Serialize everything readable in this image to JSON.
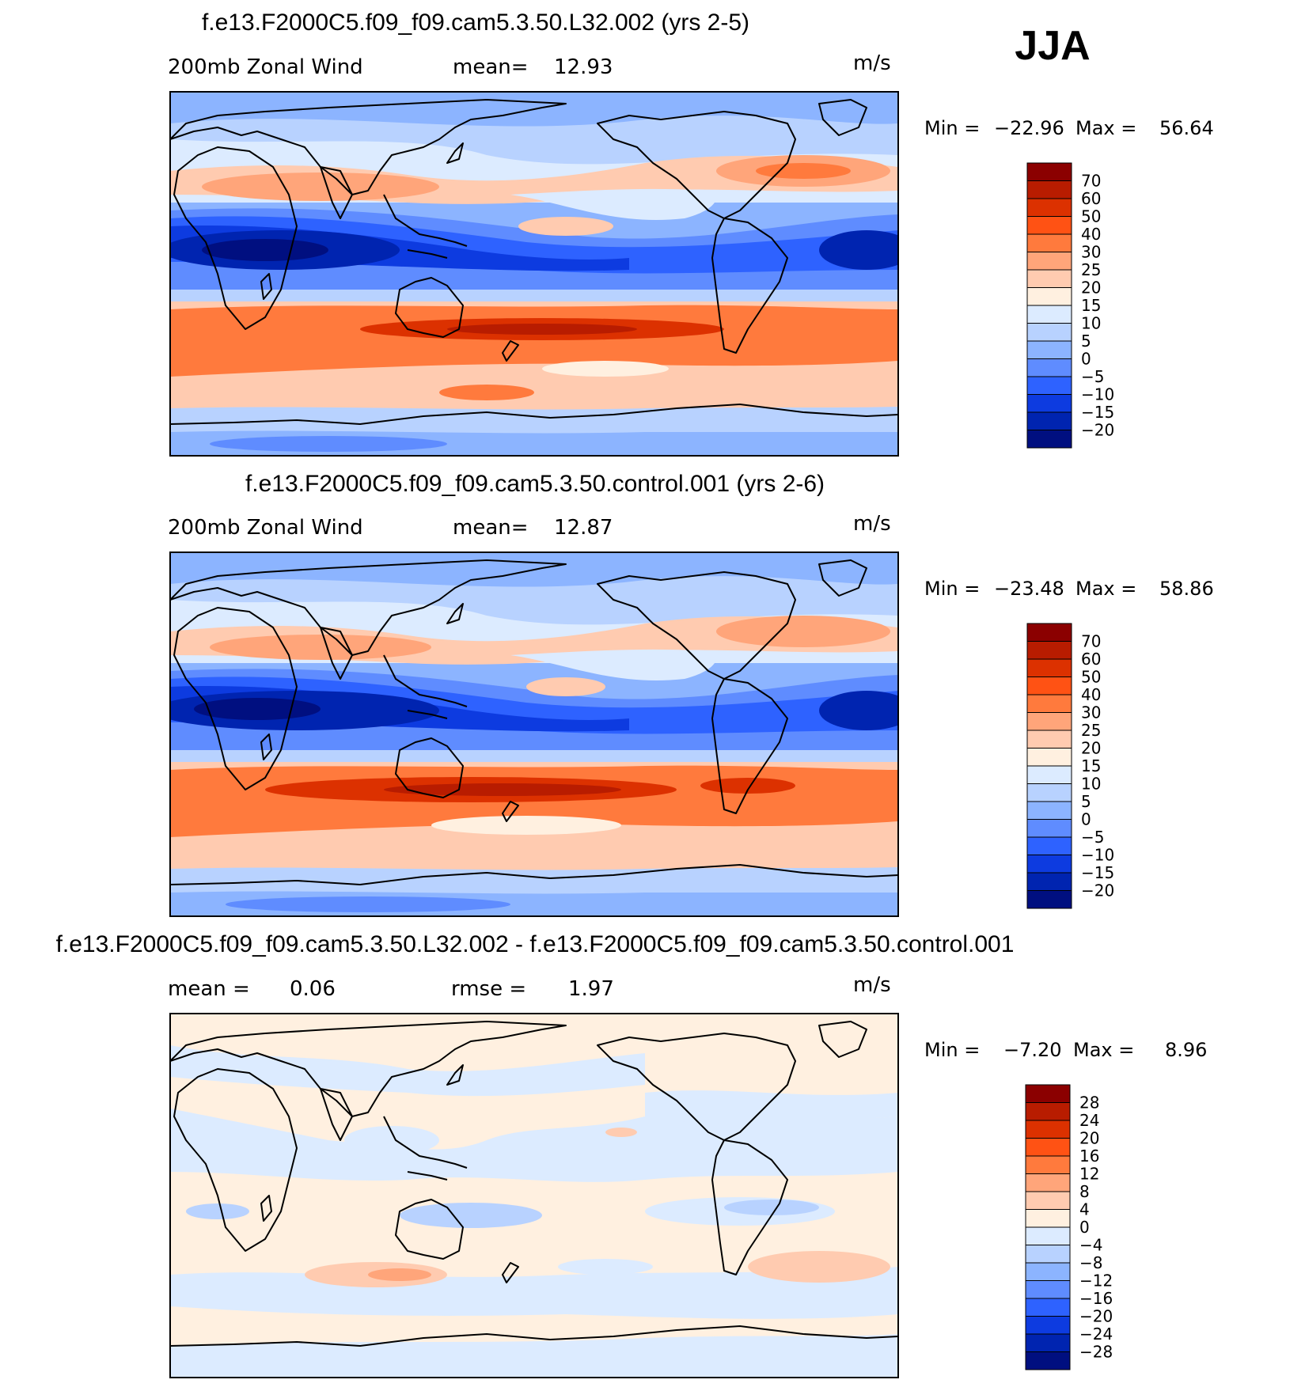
{
  "season": "JJA",
  "panels": [
    {
      "title": "f.e13.F2000C5.f09_f09.cam5.3.50.L32.002 (yrs 2-5)",
      "left_label": "200mb Zonal Wind",
      "mid_label": "mean=",
      "mid_value": "12.93",
      "units": "m/s",
      "min_label": "Min =",
      "min_value": "−22.96",
      "max_label": "Max =",
      "max_value": "56.64",
      "colorbar": {
        "colors": [
          "#8b0000",
          "#b81c00",
          "#dc3100",
          "#ff5214",
          "#ff7a3d",
          "#ffa57a",
          "#ffcbb0",
          "#fff0e0",
          "#dcebff",
          "#b8d2ff",
          "#8cb4ff",
          "#5f8cff",
          "#2e62ff",
          "#0d3be0",
          "#0024b0",
          "#000f80"
        ],
        "labels": [
          "70",
          "60",
          "50",
          "40",
          "30",
          "25",
          "20",
          "15",
          "10",
          "5",
          "0",
          "−5",
          "−10",
          "−15",
          "−20"
        ]
      }
    },
    {
      "title": "f.e13.F2000C5.f09_f09.cam5.3.50.control.001 (yrs 2-6)",
      "left_label": "200mb Zonal Wind",
      "mid_label": "mean=",
      "mid_value": "12.87",
      "units": "m/s",
      "min_label": "Min =",
      "min_value": "−23.48",
      "max_label": "Max =",
      "max_value": "58.86",
      "colorbar": {
        "colors": [
          "#8b0000",
          "#b81c00",
          "#dc3100",
          "#ff5214",
          "#ff7a3d",
          "#ffa57a",
          "#ffcbb0",
          "#fff0e0",
          "#dcebff",
          "#b8d2ff",
          "#8cb4ff",
          "#5f8cff",
          "#2e62ff",
          "#0d3be0",
          "#0024b0",
          "#000f80"
        ],
        "labels": [
          "70",
          "60",
          "50",
          "40",
          "30",
          "25",
          "20",
          "15",
          "10",
          "5",
          "0",
          "−5",
          "−10",
          "−15",
          "−20"
        ]
      }
    },
    {
      "title": "f.e13.F2000C5.f09_f09.cam5.3.50.L32.002 - f.e13.F2000C5.f09_f09.cam5.3.50.control.001",
      "left_label": "mean =",
      "left_value": "0.06",
      "mid_label": "rmse =",
      "mid_value": "1.97",
      "units": "m/s",
      "min_label": "Min =",
      "min_value": "−7.20",
      "max_label": "Max =",
      "max_value": "8.96",
      "colorbar": {
        "colors": [
          "#8b0000",
          "#b81c00",
          "#dc3100",
          "#ff5214",
          "#ff7a3d",
          "#ffa57a",
          "#ffcbb0",
          "#fff0e0",
          "#dcebff",
          "#b8d2ff",
          "#8cb4ff",
          "#5f8cff",
          "#2e62ff",
          "#0d3be0",
          "#0024b0",
          "#000f80"
        ],
        "labels": [
          "28",
          "24",
          "20",
          "16",
          "12",
          "8",
          "4",
          "0",
          "−4",
          "−8",
          "−12",
          "−16",
          "−20",
          "−24",
          "−28"
        ]
      }
    }
  ],
  "colors": {
    "c70": "#8b0000",
    "c60": "#b81c00",
    "c50": "#dc3100",
    "c40": "#ff5214",
    "c30": "#ff7a3d",
    "c25": "#ffa57a",
    "c20": "#ffcbb0",
    "c15": "#fff0e0",
    "c10": "#dcebff",
    "c5": "#b8d2ff",
    "c0": "#8cb4ff",
    "cm5": "#5f8cff",
    "cm10": "#2e62ff",
    "cm15": "#0d3be0",
    "cm20": "#0024b0",
    "cm25": "#000f80"
  }
}
